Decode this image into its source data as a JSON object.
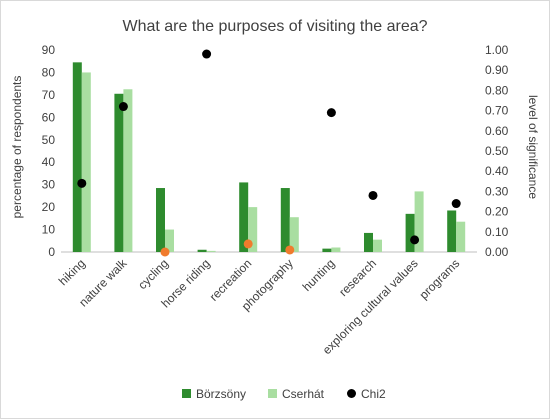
{
  "chart_data": {
    "type": "bar",
    "title": "What are the purposes of visiting the area?",
    "categories": [
      "hiking",
      "nature walk",
      "cycling",
      "horse riding",
      "recreation",
      "photography",
      "hunting",
      "research",
      "exploring cultural values",
      "programs"
    ],
    "series": [
      {
        "name": "Börzsöny",
        "type": "bar",
        "axis": "left",
        "color": "#2e8b2e",
        "values": [
          84.5,
          70.5,
          28.5,
          1,
          31,
          28.5,
          1.5,
          8.5,
          17,
          18.5
        ]
      },
      {
        "name": "Cserhát",
        "type": "bar",
        "axis": "left",
        "color": "#a9dea1",
        "values": [
          80,
          72.5,
          10,
          0.5,
          20,
          15.5,
          2,
          5.5,
          27,
          13.5
        ]
      },
      {
        "name": "Chi2",
        "type": "scatter",
        "axis": "right",
        "color": "#000000",
        "highlight_color": "#f07b2d",
        "values": [
          0.34,
          0.72,
          0.0,
          0.98,
          0.04,
          0.01,
          0.69,
          0.28,
          0.06,
          0.24
        ]
      }
    ],
    "highlighted_points": [
      2,
      4,
      5
    ],
    "ylabel": "percentage of respondents",
    "y2label": "level of significance",
    "ylim": [
      0,
      90
    ],
    "y2lim": [
      0,
      1
    ],
    "yticks": [
      "0",
      "10",
      "20",
      "30",
      "40",
      "50",
      "60",
      "70",
      "80",
      "90"
    ],
    "y2ticks": [
      "0.00",
      "0.10",
      "0.20",
      "0.30",
      "0.40",
      "0.50",
      "0.60",
      "0.70",
      "0.80",
      "0.90",
      "1.00"
    ],
    "legend_position": "bottom",
    "grid": false
  }
}
